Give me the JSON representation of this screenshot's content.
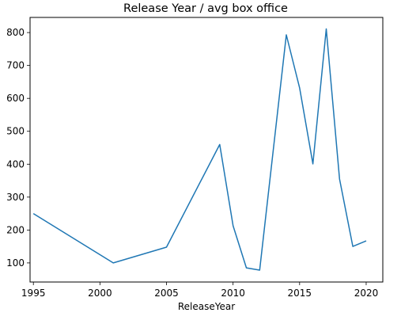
{
  "chart_data": {
    "type": "line",
    "title": "Release Year / avg box office",
    "xlabel": "ReleaseYear",
    "ylabel": "",
    "xlim": [
      1994.75,
      2021.25
    ],
    "ylim": [
      42,
      846
    ],
    "x_ticks": [
      1995,
      2000,
      2005,
      2010,
      2015,
      2020
    ],
    "y_ticks": [
      100,
      200,
      300,
      400,
      500,
      600,
      700,
      800
    ],
    "x_tick_labels": [
      "1995",
      "2000",
      "2005",
      "2010",
      "2015",
      "2020"
    ],
    "y_tick_labels": [
      "100",
      "200",
      "300",
      "400",
      "500",
      "600",
      "700",
      "800"
    ],
    "grid": false,
    "series": [
      {
        "color": "#1f77b4",
        "x": [
          1995,
          2001,
          2005,
          2009,
          2010,
          2011,
          2012,
          2014,
          2015,
          2016,
          2017,
          2018,
          2019,
          2020
        ],
        "y": [
          250,
          100,
          148,
          460,
          213,
          85,
          78,
          793,
          632,
          401,
          811,
          355,
          150,
          167
        ]
      }
    ]
  }
}
